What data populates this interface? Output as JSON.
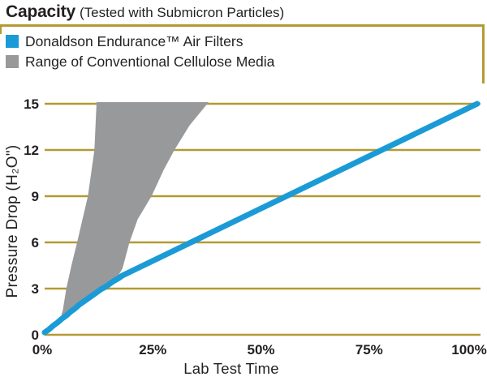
{
  "title": {
    "main": "Capacity",
    "subtitle": "(Tested with Submicron Particles)"
  },
  "legend": {
    "items": [
      {
        "label": "Donaldson Endurance™ Air Filters",
        "color": "#1B9BD6"
      },
      {
        "label": "Range of Conventional Cellulose Media",
        "color": "#98999B"
      }
    ]
  },
  "colors": {
    "grid": "#B49A33",
    "text": "#231F20",
    "background": "#FFFFFF"
  },
  "chart_data": {
    "type": "line",
    "title": "Capacity (Tested with Submicron Particles)",
    "xlabel": "Lab Test Time",
    "ylabel": "Pressure Drop (H₂O\")",
    "xlim": [
      0,
      100
    ],
    "ylim": [
      0,
      15
    ],
    "grid": "horizontal",
    "legend_position": "top-left",
    "y_ticks": [
      15,
      12,
      9,
      6,
      3,
      0
    ],
    "x_ticks": [
      {
        "label": "0%",
        "pos": 0
      },
      {
        "label": "25%",
        "pos": 25
      },
      {
        "label": "50%",
        "pos": 50
      },
      {
        "label": "75%",
        "pos": 75
      },
      {
        "label": "100%",
        "pos": 100
      }
    ],
    "series": [
      {
        "name": "Donaldson Endurance™ Air Filters",
        "type": "line",
        "color": "#1B9BD6",
        "points": [
          [
            0,
            0.15
          ],
          [
            1,
            0.35
          ],
          [
            2,
            0.6
          ],
          [
            3,
            0.8
          ],
          [
            4,
            1.05
          ],
          [
            5,
            1.25
          ],
          [
            6,
            1.5
          ],
          [
            7,
            1.7
          ],
          [
            8,
            1.95
          ],
          [
            9,
            2.15
          ],
          [
            10,
            2.35
          ],
          [
            11,
            2.55
          ],
          [
            12,
            2.75
          ],
          [
            13,
            2.95
          ],
          [
            14,
            3.1
          ],
          [
            15,
            3.3
          ],
          [
            16,
            3.5
          ],
          [
            17,
            3.65
          ],
          [
            18,
            3.85
          ],
          [
            100,
            15
          ]
        ]
      },
      {
        "name": "Range of Conventional Cellulose Media",
        "type": "band",
        "color": "#98999B",
        "right_edge": [
          [
            3.5,
            0.9
          ],
          [
            8,
            1.9
          ],
          [
            12,
            2.7
          ],
          [
            15,
            3.2
          ],
          [
            16.5,
            3.6
          ],
          [
            18,
            4.3
          ],
          [
            19.6,
            6
          ],
          [
            21.5,
            7.5
          ],
          [
            24.7,
            9
          ],
          [
            27.5,
            10.7
          ],
          [
            30,
            12
          ],
          [
            33.5,
            13.6
          ],
          [
            37.9,
            15
          ]
        ],
        "left_edge": [
          [
            3.5,
            0.9
          ],
          [
            4.2,
            1.6
          ],
          [
            5,
            3
          ],
          [
            6.2,
            4.5
          ],
          [
            7.5,
            6
          ],
          [
            10,
            9
          ],
          [
            11.5,
            12
          ],
          [
            12,
            15
          ]
        ]
      }
    ]
  }
}
